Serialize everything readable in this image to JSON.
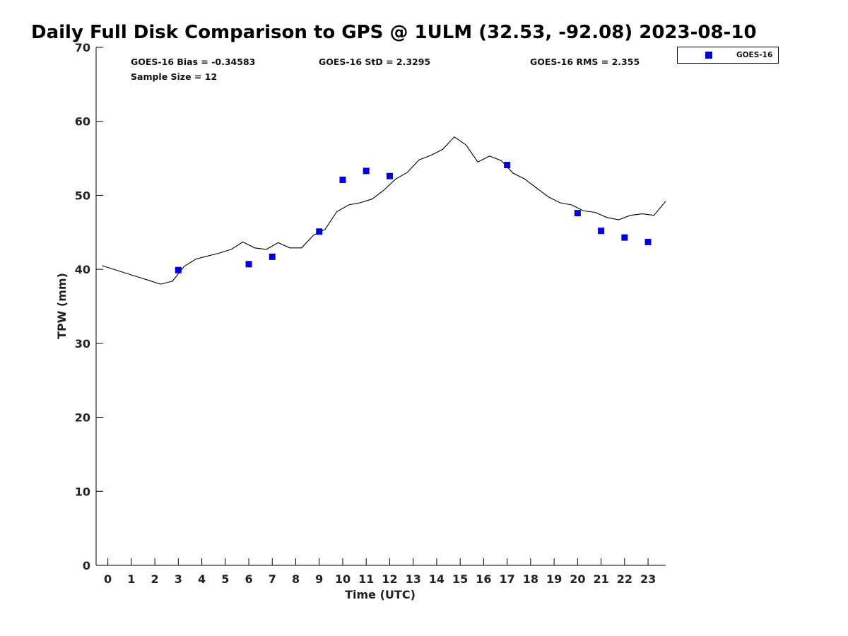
{
  "chart_data": {
    "type": "scatter",
    "title": "Daily Full Disk Comparison to GPS @ 1ULM (32.53, -92.08) 2023-08-10",
    "xlabel": "Time (UTC)",
    "ylabel": "TPW (mm)",
    "xlim": [
      -0.5,
      23.75
    ],
    "ylim": [
      0,
      70
    ],
    "x_ticks": [
      "0",
      "1",
      "2",
      "3",
      "4",
      "5",
      "6",
      "7",
      "8",
      "9",
      "10",
      "11",
      "12",
      "13",
      "14",
      "15",
      "16",
      "17",
      "18",
      "19",
      "20",
      "21",
      "22",
      "23"
    ],
    "y_ticks": [
      "0",
      "10",
      "20",
      "30",
      "40",
      "50",
      "60",
      "70"
    ],
    "grid": false,
    "legend_placement": "top-right-outside",
    "stats": {
      "bias": "GOES-16 Bias = -0.34583",
      "std": "GOES-16 StD = 2.3295",
      "rms": "GOES-16 RMS = 2.355",
      "sample_size": "Sample Size = 12"
    },
    "gps_line": {
      "color": "#000000",
      "x": [
        -0.25,
        0.25,
        0.75,
        1.25,
        1.75,
        2.25,
        2.75,
        3.25,
        3.75,
        4.25,
        4.75,
        5.25,
        5.75,
        6.25,
        6.75,
        7.25,
        7.75,
        8.25,
        8.75,
        9.25,
        9.75,
        10.25,
        10.75,
        11.25,
        11.75,
        12.25,
        12.75,
        13.25,
        13.75,
        14.25,
        14.75,
        15.25,
        15.75,
        16.25,
        16.75,
        17.25,
        17.75,
        18.25,
        18.75,
        19.25,
        19.75,
        20.25,
        20.75,
        21.25,
        21.75,
        22.25,
        22.75,
        23.25,
        23.75
      ],
      "y": [
        40.5,
        40.0,
        39.5,
        39.0,
        38.5,
        38.0,
        38.4,
        40.4,
        41.4,
        41.8,
        42.2,
        42.7,
        43.7,
        42.9,
        42.7,
        43.6,
        42.9,
        42.9,
        44.6,
        45.4,
        47.8,
        48.7,
        49.0,
        49.5,
        50.7,
        52.2,
        53.1,
        54.8,
        55.4,
        56.2,
        57.9,
        56.8,
        54.5,
        55.3,
        54.7,
        53.0,
        52.2,
        51.0,
        49.8,
        49.0,
        48.7,
        47.9,
        47.7,
        47.0,
        46.7,
        47.3,
        47.5,
        47.3,
        49.2
      ]
    },
    "series": [
      {
        "name": "GOES-16",
        "color": "#0000dd",
        "marker": "square",
        "x": [
          3,
          6,
          7,
          9,
          10,
          11,
          12,
          17,
          20,
          21,
          22,
          23
        ],
        "y": [
          39.9,
          40.7,
          41.7,
          45.1,
          52.1,
          53.3,
          52.6,
          54.1,
          47.6,
          45.2,
          44.3,
          43.7
        ]
      }
    ]
  }
}
